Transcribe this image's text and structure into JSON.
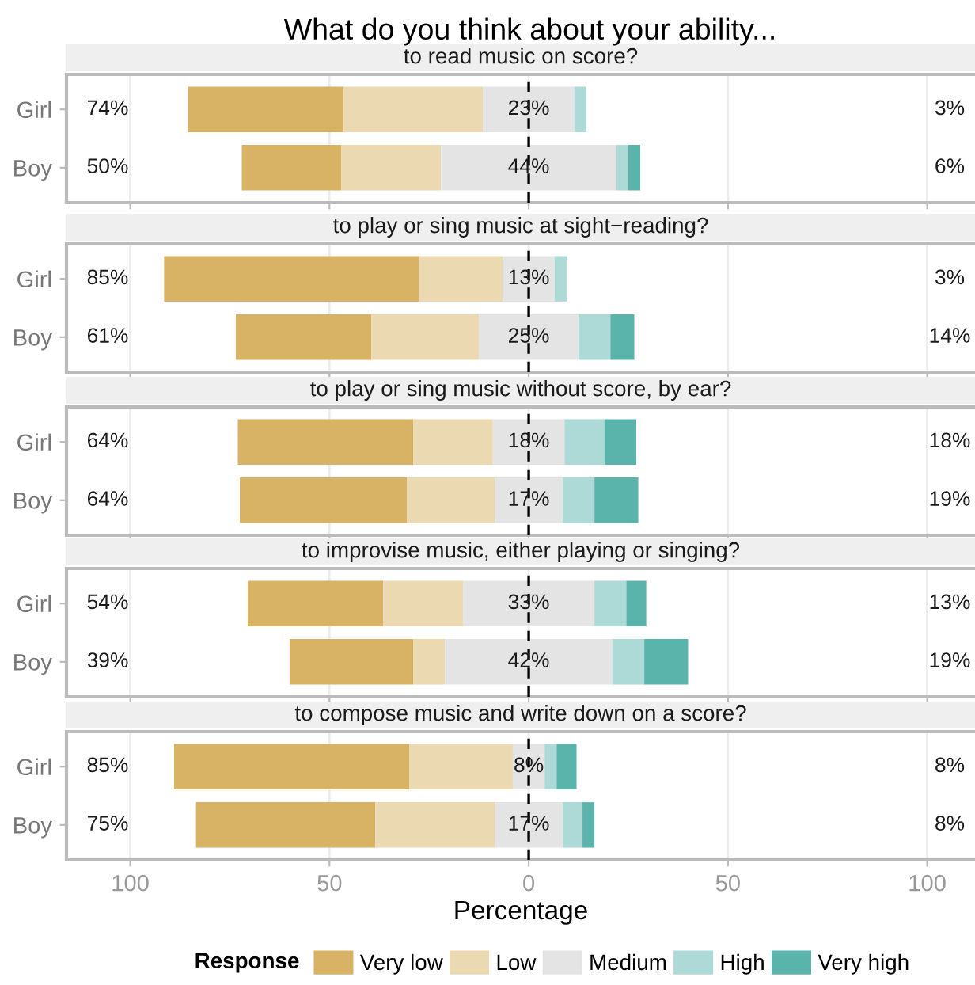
{
  "chart_data": [
    {
      "type": "bar",
      "orientation": "horizontal",
      "title": "What do you think about your ability...",
      "subtitle": "to read music on score?",
      "categories": [
        "Girl",
        "Boy"
      ],
      "xlim": [
        -116,
        112
      ],
      "tick_labels": "y",
      "grid": "x",
      "ref_lines": [
        {
          "axis": "x",
          "value": 0,
          "color": "#000000",
          "line_style": "dashed"
        }
      ],
      "series": [
        {
          "color": "#d8b365",
          "values": [
            39,
            25
          ],
          "base": [
            -85.5,
            -72
          ]
        },
        {
          "color": "#ebd9b2",
          "values": [
            35,
            25
          ],
          "base": [
            -46.5,
            -47
          ]
        },
        {
          "color": "#e4e4e4",
          "values": [
            23,
            44
          ],
          "base": [
            -11.5,
            -22
          ],
          "value_labels": [
            "23%",
            "44%"
          ]
        },
        {
          "color": "#addad6",
          "values": [
            3,
            3
          ],
          "base": [
            11.5,
            22
          ]
        },
        {
          "color": "#5ab4ac",
          "values": [
            0,
            3
          ],
          "base": [
            null,
            25
          ]
        }
      ],
      "annotations": [
        "74%",
        "50%",
        "3%",
        "6%"
      ]
    },
    {
      "type": "bar",
      "orientation": "horizontal",
      "subtitle": "to play or sing music at sight−reading?",
      "categories": [
        "Girl",
        "Boy"
      ],
      "xlim": [
        -116,
        112
      ],
      "tick_labels": "y",
      "grid": "x",
      "ref_lines": [
        {
          "axis": "x",
          "value": 0,
          "color": "#000000",
          "line_style": "dashed"
        }
      ],
      "series": [
        {
          "color": "#d8b365",
          "values": [
            64,
            34
          ],
          "base": [
            -91.5,
            -73.5
          ]
        },
        {
          "color": "#ebd9b2",
          "values": [
            21,
            27
          ],
          "base": [
            -27.5,
            -39.5
          ]
        },
        {
          "color": "#e4e4e4",
          "values": [
            13,
            25
          ],
          "base": [
            -6.5,
            -12.5
          ],
          "value_labels": [
            "13%",
            "25%"
          ]
        },
        {
          "color": "#addad6",
          "values": [
            3,
            8
          ],
          "base": [
            6.5,
            12.5
          ]
        },
        {
          "color": "#5ab4ac",
          "values": [
            0,
            6
          ],
          "base": [
            null,
            20.5
          ]
        }
      ],
      "annotations": [
        "85%",
        "61%",
        "3%",
        "14%"
      ]
    },
    {
      "type": "bar",
      "orientation": "horizontal",
      "subtitle": "to play or sing music without score, by ear?",
      "categories": [
        "Girl",
        "Boy"
      ],
      "xlim": [
        -116,
        112
      ],
      "tick_labels": "y",
      "grid": "x",
      "ref_lines": [
        {
          "axis": "x",
          "value": 0,
          "color": "#000000",
          "line_style": "dashed"
        }
      ],
      "series": [
        {
          "color": "#d8b365",
          "values": [
            44,
            42
          ],
          "base": [
            -73,
            -72.5
          ]
        },
        {
          "color": "#ebd9b2",
          "values": [
            20,
            22
          ],
          "base": [
            -29,
            -30.5
          ]
        },
        {
          "color": "#e4e4e4",
          "values": [
            18,
            17
          ],
          "base": [
            -9,
            -8.5
          ],
          "value_labels": [
            "18%",
            "17%"
          ]
        },
        {
          "color": "#addad6",
          "values": [
            10,
            8
          ],
          "base": [
            9,
            8.5
          ]
        },
        {
          "color": "#5ab4ac",
          "values": [
            8,
            11
          ],
          "base": [
            19,
            16.5
          ]
        }
      ],
      "annotations": [
        "64%",
        "64%",
        "18%",
        "19%"
      ]
    },
    {
      "type": "bar",
      "orientation": "horizontal",
      "subtitle": "to improvise music, either playing or singing?",
      "categories": [
        "Girl",
        "Boy"
      ],
      "xlim": [
        -116,
        112
      ],
      "tick_labels": "y",
      "grid": "x",
      "ref_lines": [
        {
          "axis": "x",
          "value": 0,
          "color": "#000000",
          "line_style": "dashed"
        }
      ],
      "series": [
        {
          "color": "#d8b365",
          "values": [
            34,
            31
          ],
          "base": [
            -70.5,
            -60
          ]
        },
        {
          "color": "#ebd9b2",
          "values": [
            20,
            8
          ],
          "base": [
            -36.5,
            -29
          ]
        },
        {
          "color": "#e4e4e4",
          "values": [
            33,
            42
          ],
          "base": [
            -16.5,
            -21
          ],
          "value_labels": [
            "33%",
            "42%"
          ]
        },
        {
          "color": "#addad6",
          "values": [
            8,
            8
          ],
          "base": [
            16.5,
            21
          ]
        },
        {
          "color": "#5ab4ac",
          "values": [
            5,
            11
          ],
          "base": [
            24.5,
            29
          ]
        }
      ],
      "annotations": [
        "54%",
        "39%",
        "13%",
        "19%"
      ]
    },
    {
      "type": "bar",
      "orientation": "horizontal",
      "subtitle": "to compose music and write down on a score?",
      "categories": [
        "Girl",
        "Boy"
      ],
      "xlim": [
        -116,
        112
      ],
      "xticks": [
        {
          "value": -100,
          "label": "100"
        },
        {
          "value": -50,
          "label": "50"
        },
        0,
        50,
        100
      ],
      "xlabel": "Percentage",
      "grid": "x",
      "legend": "bottom",
      "legend_title": "Response",
      "ref_lines": [
        {
          "axis": "x",
          "value": 0,
          "color": "#000000",
          "line_style": "dashed"
        }
      ],
      "series": [
        {
          "name": "Very low",
          "color": "#d8b365",
          "values": [
            59,
            45
          ],
          "base": [
            -89,
            -83.5
          ]
        },
        {
          "name": "Low",
          "color": "#ebd9b2",
          "values": [
            26,
            30
          ],
          "base": [
            -30,
            -38.5
          ]
        },
        {
          "name": "Medium",
          "color": "#e4e4e4",
          "values": [
            8,
            17
          ],
          "base": [
            -4,
            -8.5
          ],
          "value_labels": [
            "8%",
            "17%"
          ]
        },
        {
          "name": "High",
          "color": "#addad6",
          "values": [
            3,
            5
          ],
          "base": [
            4,
            8.5
          ]
        },
        {
          "name": "Very high",
          "color": "#5ab4ac",
          "values": [
            5,
            3
          ],
          "base": [
            7,
            13.5
          ]
        }
      ],
      "annotations": [
        "85%",
        "75%",
        "8%",
        "8%"
      ]
    }
  ]
}
